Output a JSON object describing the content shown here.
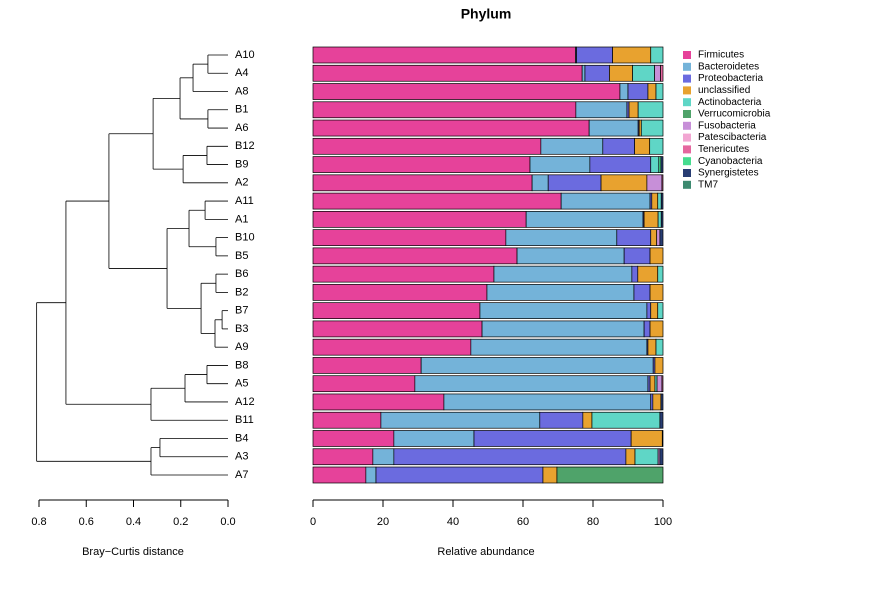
{
  "chart_data": [
    {
      "type": "dendrogram",
      "xlabel": "Bray−Curtis distance",
      "xlim": [
        0.8,
        0
      ],
      "xticks": [
        0.8,
        0.6,
        0.4,
        0.2,
        {
          "value": 0,
          "label": "0.0"
        }
      ],
      "merges": [
        [
          0,
          1,
          0.085
        ],
        [
          24,
          2,
          0.148
        ],
        [
          3,
          4,
          0.085
        ],
        [
          25,
          26,
          0.203
        ],
        [
          5,
          6,
          0.089
        ],
        [
          28,
          7,
          0.19
        ],
        [
          27,
          29,
          0.317
        ],
        [
          8,
          9,
          0.097
        ],
        [
          10,
          11,
          0.051
        ],
        [
          31,
          32,
          0.165
        ],
        [
          12,
          13,
          0.051
        ],
        [
          14,
          15,
          0.025
        ],
        [
          35,
          16,
          0.055
        ],
        [
          34,
          36,
          0.114
        ],
        [
          33,
          37,
          0.258
        ],
        [
          30,
          38,
          0.504
        ],
        [
          17,
          18,
          0.089
        ],
        [
          40,
          19,
          0.182
        ],
        [
          41,
          20,
          0.326
        ],
        [
          39,
          42,
          0.686
        ],
        [
          21,
          22,
          0.288
        ],
        [
          44,
          23,
          0.326
        ],
        [
          43,
          45,
          0.81
        ]
      ]
    },
    {
      "type": "bar",
      "orientation": "horizontal",
      "stacked": true,
      "title": "Phylum",
      "xlabel": "Relative abundance",
      "xlim": [
        0,
        100
      ],
      "xticks": [
        0,
        20,
        40,
        60,
        80,
        100
      ],
      "legend": "right",
      "categories": [
        "A10",
        "A4",
        "A8",
        "B1",
        "A6",
        "B12",
        "B9",
        "A2",
        "A11",
        "A1",
        "B10",
        "B5",
        "B6",
        "B2",
        "B7",
        "B3",
        "A9",
        "B8",
        "A5",
        "A12",
        "B11",
        "B4",
        "A3",
        "A7"
      ],
      "series": [
        {
          "name": "Firmicutes",
          "color": "#e6429a",
          "values": [
            75,
            76.9,
            87.7,
            75.1,
            78.9,
            65.1,
            62,
            62.6,
            70.9,
            60.9,
            55.1,
            58.3,
            51.7,
            49.7,
            47.7,
            48.3,
            45.1,
            30.9,
            29.1,
            37.4,
            19.4,
            23.1,
            17.1,
            15.1
          ]
        },
        {
          "name": "Bacteroidetes",
          "color": "#74b3d9",
          "values": [
            0.3,
            0.8,
            2.3,
            14.6,
            14,
            17.7,
            17.1,
            4.6,
            25.4,
            33.4,
            31.7,
            30.6,
            39.4,
            42,
            47.7,
            46.3,
            50.3,
            66.3,
            66.6,
            59.1,
            45.4,
            22.9,
            6,
            2.9
          ]
        },
        {
          "name": "Proteobacteria",
          "color": "#6b6bdf",
          "values": [
            10.3,
            7,
            5.7,
            0.6,
            0.3,
            9.1,
            17.4,
            15.1,
            0.5,
            0.3,
            9.7,
            7.4,
            1.7,
            4.6,
            1.1,
            1.7,
            0.3,
            0.5,
            0.6,
            0.6,
            12.3,
            44.9,
            66.3,
            47.7
          ]
        },
        {
          "name": "unclassified",
          "color": "#e8a22f",
          "values": [
            10.9,
            6.6,
            2.3,
            2.6,
            0.6,
            4.3,
            0,
            13.1,
            1.7,
            4,
            1.7,
            3.7,
            5.7,
            3.7,
            2,
            3.7,
            2.3,
            2.3,
            1.4,
            2.3,
            2.6,
            8.9,
            2.6,
            4
          ]
        },
        {
          "name": "Actinobacteria",
          "color": "#5fd6c6",
          "values": [
            3.5,
            6.3,
            2,
            7.1,
            6.2,
            3.8,
            2.3,
            0,
            1,
            0.9,
            0,
            0,
            1.5,
            0,
            1.5,
            0,
            2,
            0,
            0.6,
            0,
            19.4,
            0,
            6.6,
            0
          ]
        },
        {
          "name": "Verrucomicrobia",
          "color": "#4fa36a",
          "values": [
            0,
            0,
            0,
            0,
            0,
            0,
            0,
            0,
            0,
            0,
            0,
            0,
            0,
            0,
            0,
            0,
            0,
            0,
            0,
            0,
            0,
            0,
            0,
            30.3
          ]
        },
        {
          "name": "Fusobacteria",
          "color": "#c78fd8",
          "values": [
            0,
            1.7,
            0,
            0,
            0,
            0,
            0,
            4.3,
            0,
            0,
            0.9,
            0,
            0,
            0,
            0,
            0,
            0,
            0,
            1.4,
            0,
            0,
            0,
            0.5,
            0
          ]
        },
        {
          "name": "Patescibacteria",
          "color": "#f2a6d2",
          "values": [
            0,
            0,
            0,
            0,
            0,
            0,
            0,
            0,
            0,
            0,
            0,
            0,
            0,
            0,
            0,
            0,
            0,
            0,
            0,
            0,
            0,
            0,
            0,
            0
          ]
        },
        {
          "name": "Tenericutes",
          "color": "#e5679f",
          "values": [
            0,
            0.7,
            0,
            0,
            0,
            0,
            0,
            0.3,
            0,
            0,
            0,
            0,
            0,
            0,
            0,
            0,
            0,
            0,
            0.3,
            0,
            0,
            0,
            0,
            0
          ]
        },
        {
          "name": "Cyanobacteria",
          "color": "#46dc8f",
          "values": [
            0,
            0,
            0,
            0,
            0,
            0,
            0.6,
            0,
            0,
            0,
            0,
            0,
            0,
            0,
            0,
            0,
            0,
            0,
            0,
            0,
            0,
            0,
            0,
            0
          ]
        },
        {
          "name": "Synergistetes",
          "color": "#283d73",
          "values": [
            0,
            0,
            0,
            0,
            0,
            0,
            0.6,
            0,
            0.5,
            0.5,
            0.9,
            0,
            0,
            0,
            0,
            0,
            0,
            0,
            0,
            0.6,
            0.9,
            0.2,
            0.9,
            0
          ]
        },
        {
          "name": "TM7",
          "color": "#3d8a70",
          "values": [
            0,
            0,
            0,
            0,
            0,
            0,
            0,
            0,
            0,
            0,
            0,
            0,
            0,
            0,
            0,
            0,
            0,
            0,
            0,
            0,
            0,
            0,
            0,
            0
          ]
        }
      ]
    }
  ]
}
